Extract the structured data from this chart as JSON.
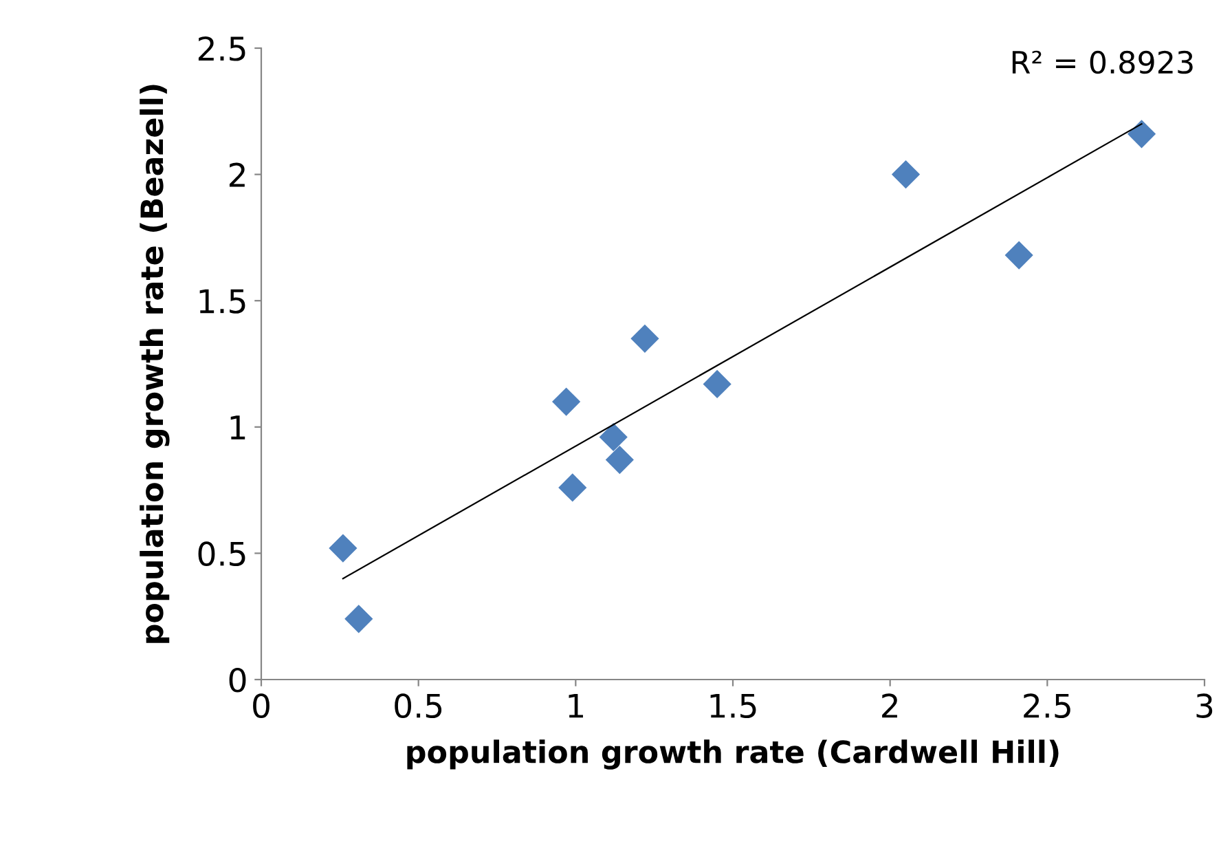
{
  "chart_data": {
    "type": "scatter",
    "xlabel": "population growth rate (Cardwell Hill)",
    "ylabel": "population growth rate (Beazell)",
    "annotations": [
      "R² = 0.8923"
    ],
    "xlim": [
      0,
      3
    ],
    "xticks": [
      0,
      0.5,
      1,
      1.5,
      2,
      2.5,
      3
    ],
    "ylim": [
      0,
      2.5
    ],
    "yticks": [
      0,
      0.5,
      1,
      1.5,
      2,
      2.5
    ],
    "grid": false,
    "legend": false,
    "marker": "diamond",
    "series": [
      {
        "color": "#4f81bd",
        "x": [
          0.26,
          0.31,
          0.97,
          0.99,
          1.12,
          1.14,
          1.22,
          1.45,
          2.05,
          2.41,
          2.8
        ],
        "values": [
          0.52,
          0.24,
          1.1,
          0.76,
          0.96,
          0.87,
          1.35,
          1.17,
          2.0,
          1.68,
          2.16
        ]
      },
      {
        "type": "line",
        "color": "#000000",
        "marker": "none",
        "line_style": "solid",
        "x": [
          0.26,
          2.8
        ],
        "values": [
          0.4,
          2.2
        ]
      }
    ]
  }
}
